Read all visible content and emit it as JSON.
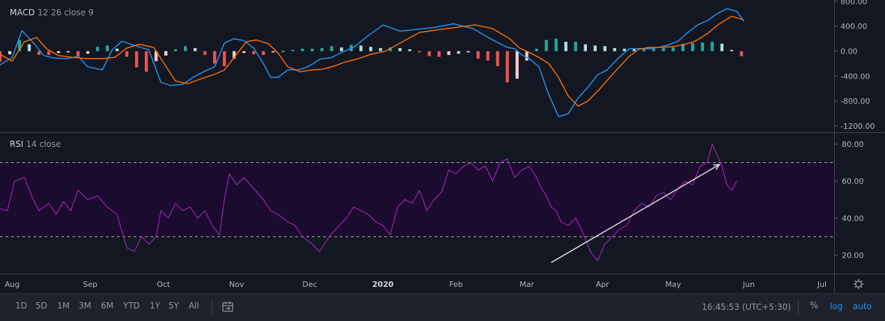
{
  "chart_data": [
    {
      "type": "line",
      "title": "MACD",
      "args": "12 26 close 9",
      "ylim": [
        -1300,
        820
      ],
      "y_ticks": [
        "800.00",
        "400.00",
        "0.00",
        "-400.00",
        "-800.00",
        "-1200.00"
      ],
      "tick_values": [
        800,
        400,
        0,
        -400,
        -800,
        -1200
      ],
      "x_range": [
        0,
        342
      ],
      "colors": {
        "macd": "#2196f3",
        "signal": "#ff6d00",
        "hist_pos": "#26a69a",
        "hist_pos_light": "#b2dfdb",
        "hist_neg": "#ef5350",
        "hist_neg_light": "#ffcdd2"
      },
      "series": [
        {
          "key": "macd",
          "x": [
            0,
            5,
            9,
            14,
            18,
            22,
            28,
            32,
            36,
            42,
            46,
            50,
            56,
            61,
            66,
            70,
            75,
            80,
            85,
            88,
            92,
            96,
            100,
            104,
            108,
            111,
            114,
            118,
            122,
            125,
            128,
            131,
            136,
            140,
            145,
            150,
            157,
            164,
            171,
            178,
            186,
            194,
            201,
            208,
            211,
            214,
            217,
            221,
            225,
            229,
            233,
            237,
            241,
            245,
            249,
            252,
            255,
            258,
            262,
            266,
            270,
            274,
            278,
            282,
            286,
            290,
            294,
            298,
            302,
            305
          ],
          "values": [
            -220,
            -100,
            330,
            120,
            -70,
            -110,
            -120,
            -80,
            -250,
            -300,
            20,
            160,
            80,
            20,
            -500,
            -550,
            -530,
            -400,
            -300,
            -250,
            130,
            200,
            170,
            50,
            -200,
            -420,
            -420,
            -300,
            -300,
            -270,
            -210,
            -130,
            -100,
            -20,
            60,
            220,
            420,
            320,
            350,
            380,
            440,
            360,
            200,
            60,
            40,
            -60,
            -120,
            -250,
            -700,
            -1050,
            -1000,
            -750,
            -580,
            -380,
            -300,
            -170,
            -60,
            40,
            40,
            40,
            60,
            100,
            160,
            300,
            420,
            490,
            600,
            680,
            640,
            480
          ]
        },
        {
          "key": "signal",
          "x": [
            0,
            5,
            10,
            15,
            19,
            24,
            30,
            36,
            42,
            47,
            52,
            57,
            63,
            67,
            72,
            77,
            82,
            88,
            92,
            96,
            101,
            105,
            110,
            114,
            118,
            123,
            128,
            132,
            137,
            141,
            147,
            152,
            158,
            165,
            172,
            179,
            187,
            195,
            202,
            209,
            213,
            217,
            221,
            225,
            229,
            233,
            237,
            241,
            246,
            250,
            254,
            258,
            262,
            266,
            270,
            275,
            280,
            285,
            290,
            295,
            300,
            305
          ],
          "values": [
            -50,
            -160,
            150,
            220,
            40,
            -70,
            -100,
            -120,
            -120,
            -100,
            50,
            110,
            60,
            -180,
            -480,
            -520,
            -450,
            -370,
            -300,
            -100,
            150,
            180,
            120,
            -30,
            -250,
            -330,
            -300,
            -290,
            -240,
            -180,
            -120,
            -50,
            0,
            150,
            300,
            340,
            380,
            420,
            360,
            200,
            50,
            -20,
            -100,
            -200,
            -420,
            -720,
            -880,
            -800,
            -600,
            -420,
            -250,
            -80,
            30,
            60,
            60,
            70,
            100,
            160,
            280,
            440,
            560,
            500
          ]
        }
      ],
      "histogram": {
        "x": [
          0,
          4,
          8,
          12,
          16,
          20,
          24,
          28,
          32,
          36,
          40,
          44,
          48,
          52,
          56,
          60,
          64,
          68,
          72,
          76,
          80,
          84,
          88,
          92,
          96,
          100,
          104,
          108,
          112,
          116,
          120,
          124,
          128,
          132,
          136,
          140,
          144,
          148,
          152,
          156,
          160,
          164,
          168,
          172,
          176,
          180,
          184,
          188,
          192,
          196,
          200,
          204,
          208,
          212,
          216,
          220,
          224,
          228,
          232,
          236,
          240,
          244,
          248,
          252,
          256,
          260,
          264,
          268,
          272,
          276,
          280,
          284,
          288,
          292,
          296,
          300,
          304
        ],
        "values": [
          -170,
          -50,
          180,
          110,
          -60,
          -60,
          -30,
          -20,
          -80,
          -40,
          70,
          90,
          40,
          -90,
          -260,
          -330,
          -160,
          -70,
          30,
          80,
          50,
          -60,
          -200,
          -240,
          -120,
          -30,
          -50,
          -60,
          -20,
          -10,
          20,
          40,
          40,
          50,
          80,
          60,
          100,
          90,
          70,
          50,
          60,
          50,
          30,
          -20,
          -80,
          -90,
          -60,
          -40,
          -20,
          -120,
          -150,
          -240,
          -500,
          -440,
          -150,
          40,
          180,
          200,
          150,
          150,
          110,
          90,
          80,
          50,
          40,
          30,
          40,
          40,
          50,
          60,
          120,
          130,
          140,
          150,
          120,
          20,
          -80
        ]
      }
    },
    {
      "type": "line",
      "title": "RSI",
      "args": "14 close",
      "ylim": [
        10,
        86
      ],
      "y_ticks": [
        "80.00",
        "60.00",
        "40.00",
        "20.00"
      ],
      "tick_values": [
        80,
        60,
        40,
        20
      ],
      "band": [
        30,
        70
      ],
      "x_range": [
        0,
        342
      ],
      "colors": {
        "line": "#9c27b0",
        "band_fill": "#1b0b2e",
        "band_line": "#d1d4dc",
        "trendline": "#e0e0e0"
      },
      "series": [
        {
          "key": "rsi",
          "x": [
            0,
            3,
            6,
            10,
            13,
            16,
            20,
            23,
            26,
            29,
            32,
            36,
            40,
            44,
            48,
            52,
            55,
            58,
            61,
            64,
            66,
            69,
            72,
            75,
            78,
            81,
            84,
            87,
            90,
            92,
            94,
            97,
            100,
            104,
            108,
            111,
            114,
            118,
            121,
            124,
            128,
            131,
            135,
            139,
            142,
            145,
            148,
            151,
            154,
            157,
            160,
            163,
            166,
            169,
            172,
            175,
            178,
            181,
            184,
            187,
            190,
            193,
            196,
            199,
            202,
            205,
            208,
            211,
            214,
            217,
            220,
            222,
            224,
            226,
            228,
            230,
            233,
            236,
            239,
            242,
            245,
            248,
            251,
            254,
            257,
            260,
            263,
            266,
            269,
            272,
            275,
            278,
            281,
            284,
            287,
            290,
            292,
            294,
            296,
            298,
            300,
            302
          ],
          "values": [
            45,
            44,
            60,
            62,
            52,
            44,
            48,
            42,
            49,
            44,
            55,
            50,
            52,
            46,
            42,
            24,
            22,
            30,
            26,
            30,
            44,
            40,
            48,
            44,
            46,
            40,
            44,
            36,
            31,
            50,
            64,
            58,
            62,
            56,
            50,
            44,
            42,
            38,
            36,
            30,
            26,
            22,
            30,
            36,
            40,
            46,
            44,
            42,
            38,
            36,
            31,
            46,
            50,
            48,
            55,
            44,
            50,
            54,
            66,
            64,
            68,
            70,
            66,
            68,
            60,
            70,
            72,
            62,
            66,
            68,
            62,
            56,
            52,
            46,
            44,
            38,
            36,
            40,
            32,
            22,
            17,
            26,
            30,
            34,
            36,
            44,
            48,
            46,
            52,
            54,
            50,
            56,
            60,
            58,
            68,
            70,
            80,
            74,
            68,
            58,
            55,
            60
          ]
        }
      ],
      "trendline": {
        "from": [
          226,
          16
        ],
        "to": [
          295,
          69
        ]
      }
    }
  ],
  "x_axis": {
    "labels": [
      "Aug",
      "Sep",
      "Oct",
      "Nov",
      "Dec",
      "2020",
      "Feb",
      "Mar",
      "Apr",
      "May",
      "Jun",
      "Jul"
    ],
    "positions": [
      5,
      37,
      67,
      97,
      127,
      157,
      187,
      216,
      247,
      276,
      307,
      337
    ],
    "bold": "2020"
  },
  "toolbar": {
    "ranges": [
      "1D",
      "5D",
      "1M",
      "3M",
      "6M",
      "YTD",
      "1Y",
      "5Y",
      "All"
    ],
    "clock": "16:45:53 (UTC+5:30)",
    "percent": "%",
    "log": "log",
    "auto": "auto"
  },
  "colors": {
    "background": "#131722",
    "toolbar": "#1e222d",
    "axis_text": "#b2b5be",
    "accent": "#2196f3"
  },
  "icons": [
    "goto-date-icon",
    "gear-icon"
  ]
}
